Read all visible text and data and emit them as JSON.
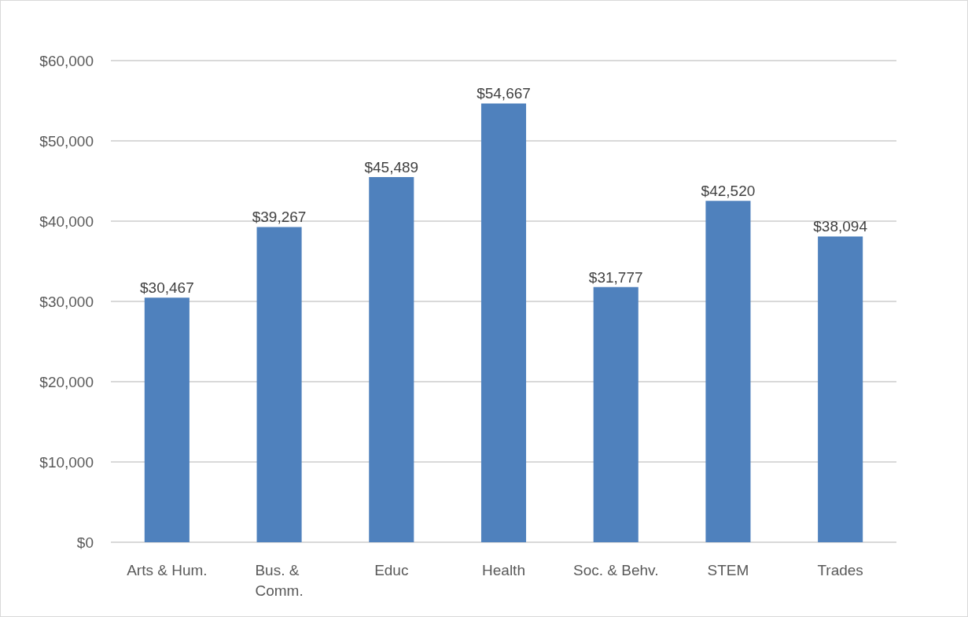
{
  "chart_data": {
    "type": "bar",
    "categories": [
      "Arts & Hum.",
      "Bus. & Comm.",
      "Educ",
      "Health",
      "Soc. & Behv.",
      "STEM",
      "Trades"
    ],
    "values": [
      30467,
      39267,
      45489,
      54667,
      31777,
      42520,
      38094
    ],
    "value_labels": [
      "$30,467",
      "$39,267",
      "$45,489",
      "$54,667",
      "$31,777",
      "$42,520",
      "$38,094"
    ],
    "color": "#4f81bd",
    "ylim": [
      0,
      60000
    ],
    "yticks": [
      {
        "value": 0,
        "label": "$0"
      },
      {
        "value": 10000,
        "label": "$10,000"
      },
      {
        "value": 20000,
        "label": "$20,000"
      },
      {
        "value": 30000,
        "label": "$30,000"
      },
      {
        "value": 40000,
        "label": "$40,000"
      },
      {
        "value": 50000,
        "label": "$50,000"
      },
      {
        "value": 60000,
        "label": "$60,000"
      }
    ],
    "grid": "y"
  }
}
